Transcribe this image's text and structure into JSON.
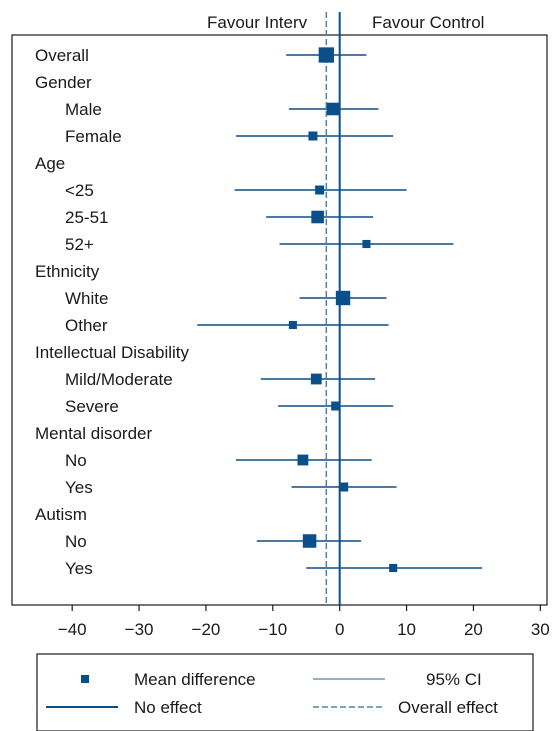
{
  "chart_data": {
    "type": "forest",
    "header_left": "Favour Interv",
    "header_right": "Favour Control",
    "xlim": [
      -49,
      31
    ],
    "xticks": [
      -40,
      -30,
      -20,
      -10,
      0,
      10,
      20,
      30
    ],
    "no_effect": 0,
    "overall_effect": -2,
    "colors": {
      "marker": "#0b4f8a",
      "ci": "#0b4f8a",
      "no_effect": "#0b4f8a",
      "overall_effect": "#4a83b8",
      "frame": "#1a1a1a"
    },
    "rows": [
      {
        "label": "Overall",
        "indent": 0,
        "mean": -2,
        "lo": -8,
        "hi": 4,
        "weight": 1.7
      },
      {
        "label": "Gender",
        "indent": 0,
        "header": true
      },
      {
        "label": "Male",
        "indent": 1,
        "mean": -1,
        "lo": -7.6,
        "hi": 5.8,
        "weight": 1.4
      },
      {
        "label": "Female",
        "indent": 1,
        "mean": -4,
        "lo": -15.5,
        "hi": 8,
        "weight": 1.0
      },
      {
        "label": "Age",
        "indent": 0,
        "header": true
      },
      {
        "label": "<25",
        "indent": 1,
        "mean": -3,
        "lo": -15.7,
        "hi": 10,
        "weight": 1.0
      },
      {
        "label": "25-51",
        "indent": 1,
        "mean": -3.3,
        "lo": -11,
        "hi": 5,
        "weight": 1.4
      },
      {
        "label": "52+",
        "indent": 1,
        "mean": 4,
        "lo": -9,
        "hi": 17,
        "weight": 0.9
      },
      {
        "label": "Ethnicity",
        "indent": 0,
        "header": true
      },
      {
        "label": "White",
        "indent": 1,
        "mean": 0.5,
        "lo": -6,
        "hi": 7,
        "weight": 1.6
      },
      {
        "label": "Other",
        "indent": 1,
        "mean": -7,
        "lo": -21.3,
        "hi": 7.3,
        "weight": 0.9
      },
      {
        "label": "Intellectual Disability",
        "indent": 0,
        "header": true
      },
      {
        "label": "Mild/Moderate",
        "indent": 1,
        "mean": -3.5,
        "lo": -11.8,
        "hi": 5.3,
        "weight": 1.2
      },
      {
        "label": "Severe",
        "indent": 1,
        "mean": -0.6,
        "lo": -9.2,
        "hi": 8,
        "weight": 1.0
      },
      {
        "label": "Mental disorder",
        "indent": 0,
        "header": true
      },
      {
        "label": "No",
        "indent": 1,
        "mean": -5.5,
        "lo": -15.5,
        "hi": 4.8,
        "weight": 1.2
      },
      {
        "label": "Yes",
        "indent": 1,
        "mean": 0.6,
        "lo": -7.2,
        "hi": 8.5,
        "weight": 1.0
      },
      {
        "label": "Autism",
        "indent": 0,
        "header": true
      },
      {
        "label": "No",
        "indent": 1,
        "mean": -4.5,
        "lo": -12.4,
        "hi": 3.2,
        "weight": 1.5
      },
      {
        "label": "Yes",
        "indent": 1,
        "mean": 8,
        "lo": -5,
        "hi": 21.3,
        "weight": 0.9
      }
    ],
    "legend": {
      "mean_difference": "Mean difference",
      "ci": "95% CI",
      "no_effect": "No effect",
      "overall_effect": "Overall effect"
    }
  }
}
